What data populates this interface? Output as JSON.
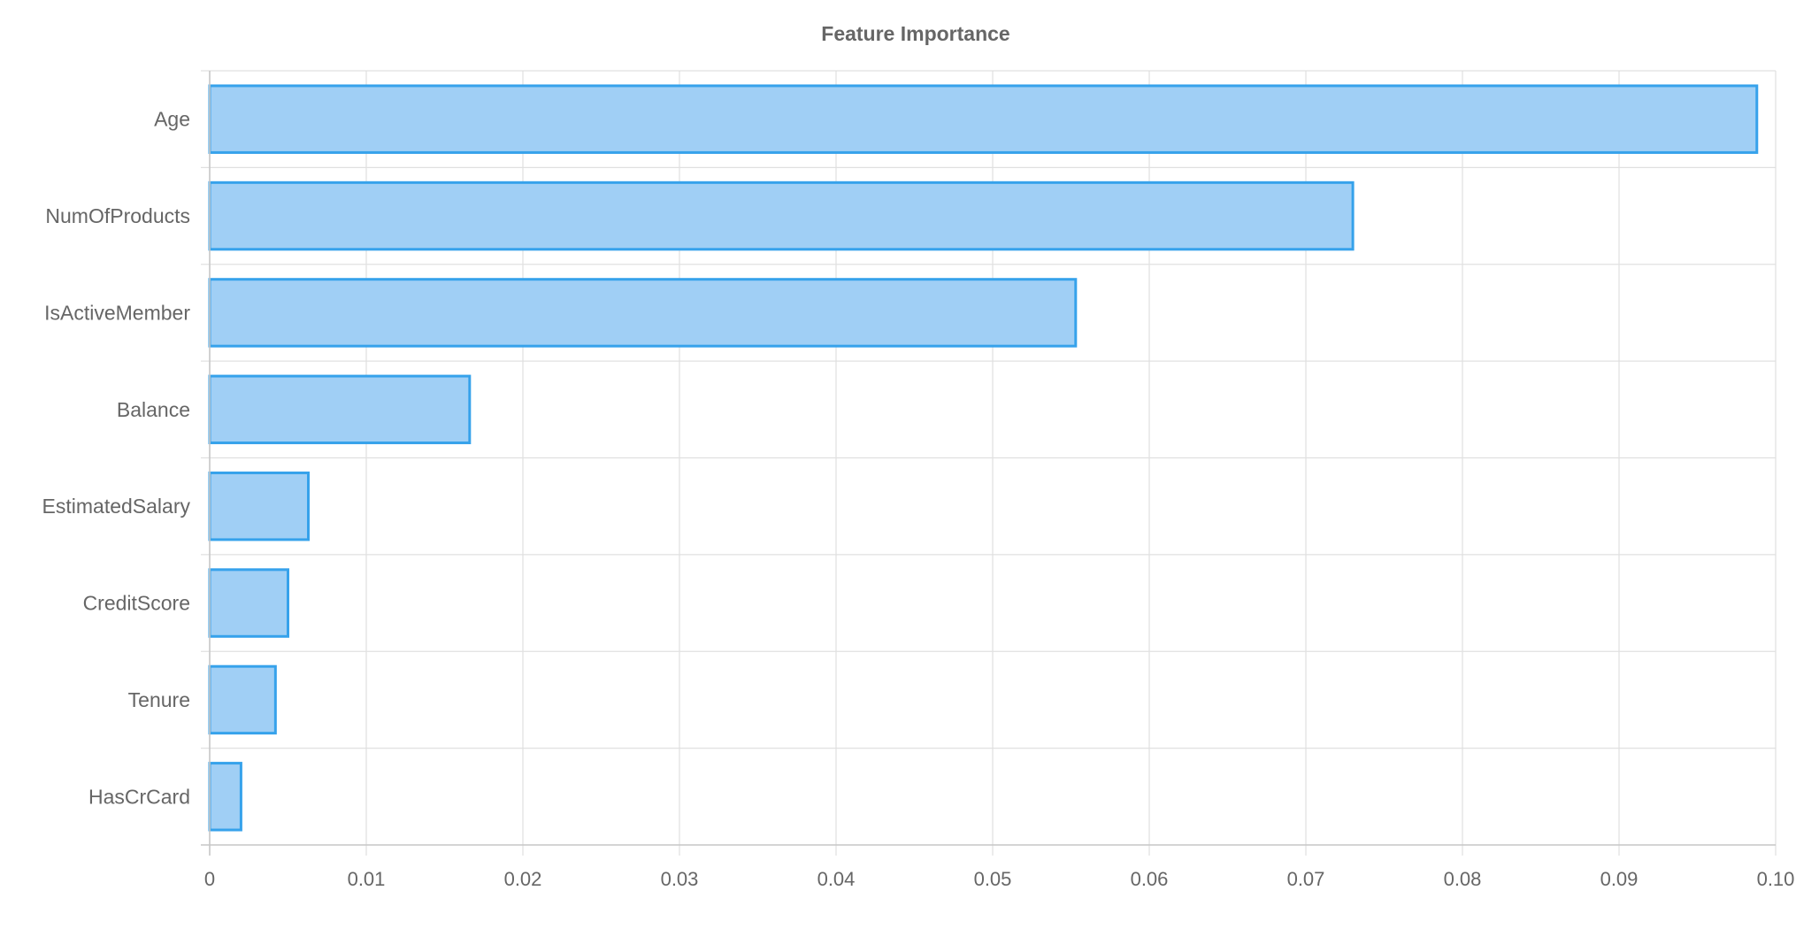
{
  "colors": {
    "bar_fill": "#A0CFF5",
    "bar_stroke": "#36A2EB",
    "grid": "#E0E0E0",
    "axis": "#C8C8C8",
    "text": "#666666"
  },
  "chart_data": {
    "type": "bar",
    "orientation": "horizontal",
    "title": "Feature Importance",
    "xlabel": "",
    "ylabel": "",
    "categories": [
      "Age",
      "NumOfProducts",
      "IsActiveMember",
      "Balance",
      "EstimatedSalary",
      "CreditScore",
      "Tenure",
      "HasCrCard"
    ],
    "values": [
      0.0988,
      0.073,
      0.0553,
      0.0166,
      0.0063,
      0.005,
      0.0042,
      0.002
    ],
    "xlim": [
      0,
      0.1
    ],
    "x_ticks": [
      0,
      0.01,
      0.02,
      0.03,
      0.04,
      0.05,
      0.06,
      0.07,
      0.08,
      0.09,
      0.1
    ],
    "x_tick_labels": [
      "0",
      "0.01",
      "0.02",
      "0.03",
      "0.04",
      "0.05",
      "0.06",
      "0.07",
      "0.08",
      "0.09",
      "0.10"
    ],
    "grid": true,
    "legend": "none"
  }
}
